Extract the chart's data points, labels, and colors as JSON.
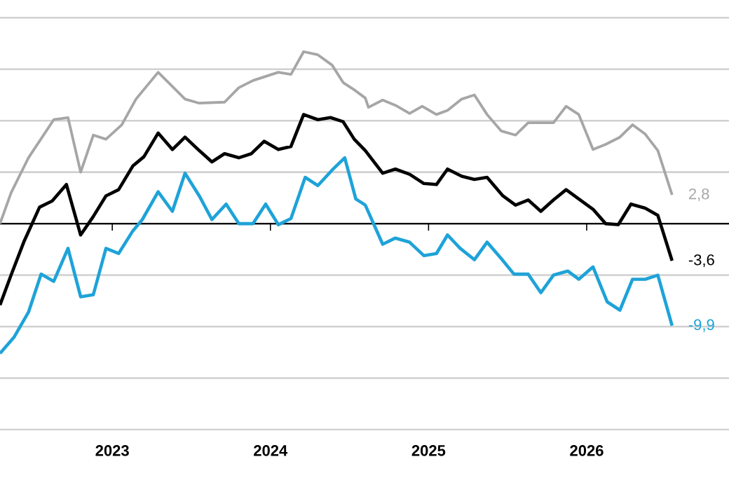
{
  "chart_data": {
    "type": "line",
    "series": [
      {
        "color": "#a6a6a6",
        "x": [
          2022.29,
          2022.36,
          2022.47,
          2022.63,
          2022.72,
          2022.8,
          2022.88,
          2022.96,
          2023.06,
          2023.15,
          2023.29,
          2023.46,
          2023.55,
          2023.71,
          2023.8,
          2023.89,
          2024.05,
          2024.13,
          2024.21,
          2024.3,
          2024.39,
          2024.46,
          2024.53,
          2024.6,
          2024.62,
          2024.71,
          2024.79,
          2024.88,
          2024.96,
          2025.05,
          2025.12,
          2025.21,
          2025.29,
          2025.37,
          2025.46,
          2025.55,
          2025.63,
          2025.72,
          2025.79,
          2025.87,
          2025.95,
          2026.04,
          2026.12,
          2026.21,
          2026.29,
          2026.37,
          2026.45,
          2026.54
        ],
        "values": [
          0.0,
          3.0,
          6.4,
          10.1,
          10.3,
          5.0,
          8.6,
          8.2,
          9.6,
          12.1,
          14.7,
          12.1,
          11.7,
          11.8,
          13.2,
          13.9,
          14.7,
          14.5,
          16.7,
          16.4,
          15.4,
          13.7,
          13.0,
          12.2,
          11.3,
          12.0,
          11.5,
          10.7,
          11.4,
          10.6,
          11.0,
          12.1,
          12.5,
          10.6,
          9.0,
          8.6,
          9.8,
          9.8,
          9.8,
          11.4,
          10.6,
          7.2,
          7.7,
          8.4,
          9.6,
          8.7,
          7.1,
          2.8
        ],
        "value_labels": [
          null,
          null,
          null,
          null,
          null,
          null,
          null,
          null,
          null,
          null,
          null,
          null,
          null,
          null,
          null,
          null,
          null,
          null,
          null,
          null,
          null,
          null,
          null,
          null,
          null,
          null,
          null,
          null,
          null,
          null,
          null,
          null,
          null,
          null,
          null,
          null,
          null,
          null,
          null,
          null,
          null,
          null,
          null,
          null,
          null,
          null,
          null,
          "2,8"
        ]
      },
      {
        "color": "#000000",
        "x": [
          2022.29,
          2022.36,
          2022.44,
          2022.54,
          2022.62,
          2022.71,
          2022.8,
          2022.88,
          2022.96,
          2023.04,
          2023.13,
          2023.2,
          2023.29,
          2023.38,
          2023.46,
          2023.55,
          2023.63,
          2023.71,
          2023.8,
          2023.88,
          2023.96,
          2024.05,
          2024.13,
          2024.21,
          2024.3,
          2024.38,
          2024.46,
          2024.53,
          2024.6,
          2024.71,
          2024.79,
          2024.88,
          2024.97,
          2025.05,
          2025.12,
          2025.21,
          2025.29,
          2025.37,
          2025.47,
          2025.55,
          2025.63,
          2025.71,
          2025.79,
          2025.87,
          2025.95,
          2026.04,
          2026.12,
          2026.2,
          2026.28,
          2026.37,
          2026.45,
          2026.54
        ],
        "values": [
          -7.9,
          -5.0,
          -1.8,
          1.6,
          2.2,
          3.8,
          -1.1,
          0.7,
          2.7,
          3.3,
          5.6,
          6.5,
          8.8,
          7.2,
          8.4,
          7.1,
          6.0,
          6.8,
          6.4,
          6.8,
          8.0,
          7.2,
          7.5,
          10.6,
          10.1,
          10.3,
          9.9,
          8.2,
          7.1,
          4.9,
          5.3,
          4.8,
          3.9,
          3.8,
          5.3,
          4.6,
          4.3,
          4.5,
          2.7,
          1.8,
          2.3,
          1.2,
          2.3,
          3.3,
          2.4,
          1.4,
          0.0,
          -0.1,
          1.9,
          1.5,
          0.8,
          -3.6
        ],
        "value_labels": [
          null,
          null,
          null,
          null,
          null,
          null,
          null,
          null,
          null,
          null,
          null,
          null,
          null,
          null,
          null,
          null,
          null,
          null,
          null,
          null,
          null,
          null,
          null,
          null,
          null,
          null,
          null,
          null,
          null,
          null,
          null,
          null,
          null,
          null,
          null,
          null,
          null,
          null,
          null,
          null,
          null,
          null,
          null,
          null,
          null,
          null,
          null,
          null,
          null,
          null,
          null,
          "-3,6"
        ]
      },
      {
        "color": "#1ea3d8",
        "x": [
          2022.29,
          2022.38,
          2022.47,
          2022.55,
          2022.63,
          2022.72,
          2022.8,
          2022.88,
          2022.96,
          2023.04,
          2023.13,
          2023.19,
          2023.29,
          2023.38,
          2023.46,
          2023.55,
          2023.63,
          2023.72,
          2023.8,
          2023.89,
          2023.97,
          2024.05,
          2024.13,
          2024.22,
          2024.3,
          2024.39,
          2024.47,
          2024.54,
          2024.6,
          2024.71,
          2024.79,
          2024.88,
          2024.97,
          2025.05,
          2025.12,
          2025.2,
          2025.29,
          2025.37,
          2025.46,
          2025.54,
          2025.63,
          2025.71,
          2025.79,
          2025.88,
          2025.95,
          2026.04,
          2026.13,
          2026.21,
          2026.29,
          2026.37,
          2026.45,
          2026.54
        ],
        "values": [
          -12.6,
          -11.0,
          -8.6,
          -4.9,
          -5.6,
          -2.4,
          -7.1,
          -6.9,
          -2.4,
          -2.9,
          -0.7,
          0.4,
          3.1,
          1.2,
          4.9,
          2.7,
          0.4,
          1.9,
          0.0,
          0.0,
          1.9,
          -0.1,
          0.5,
          4.5,
          3.7,
          5.2,
          6.4,
          2.4,
          1.8,
          -2.0,
          -1.4,
          -1.8,
          -3.1,
          -2.9,
          -1.1,
          -2.4,
          -3.5,
          -1.8,
          -3.4,
          -4.9,
          -4.9,
          -6.7,
          -5.0,
          -4.6,
          -5.4,
          -4.2,
          -7.6,
          -8.4,
          -5.4,
          -5.4,
          -5.0,
          -9.9
        ],
        "value_labels": [
          null,
          null,
          null,
          null,
          null,
          null,
          null,
          null,
          null,
          null,
          null,
          null,
          null,
          null,
          null,
          null,
          null,
          null,
          null,
          null,
          null,
          null,
          null,
          null,
          null,
          null,
          null,
          null,
          null,
          null,
          null,
          null,
          null,
          null,
          null,
          null,
          null,
          null,
          null,
          null,
          null,
          null,
          null,
          null,
          null,
          null,
          null,
          null,
          null,
          null,
          null,
          "-9,9"
        ]
      }
    ],
    "xlim": [
      2022.29,
      2026.9
    ],
    "xticks": [
      2023,
      2024,
      2025,
      2026
    ],
    "yticks": [
      {
        "value": -20,
        "label": null
      },
      {
        "value": -15,
        "label": null
      },
      {
        "value": -10,
        "label": null
      },
      {
        "value": -5,
        "label": null
      },
      {
        "value": 0,
        "label": null
      },
      {
        "value": 5,
        "label": null
      },
      {
        "value": 10,
        "label": null
      },
      {
        "value": 15,
        "label": null
      },
      {
        "value": 20,
        "label": null
      }
    ],
    "tick_labels": "x",
    "grid": "y",
    "ref_lines": [
      {
        "axis": "y",
        "value": 0,
        "color": "#000000"
      }
    ]
  }
}
